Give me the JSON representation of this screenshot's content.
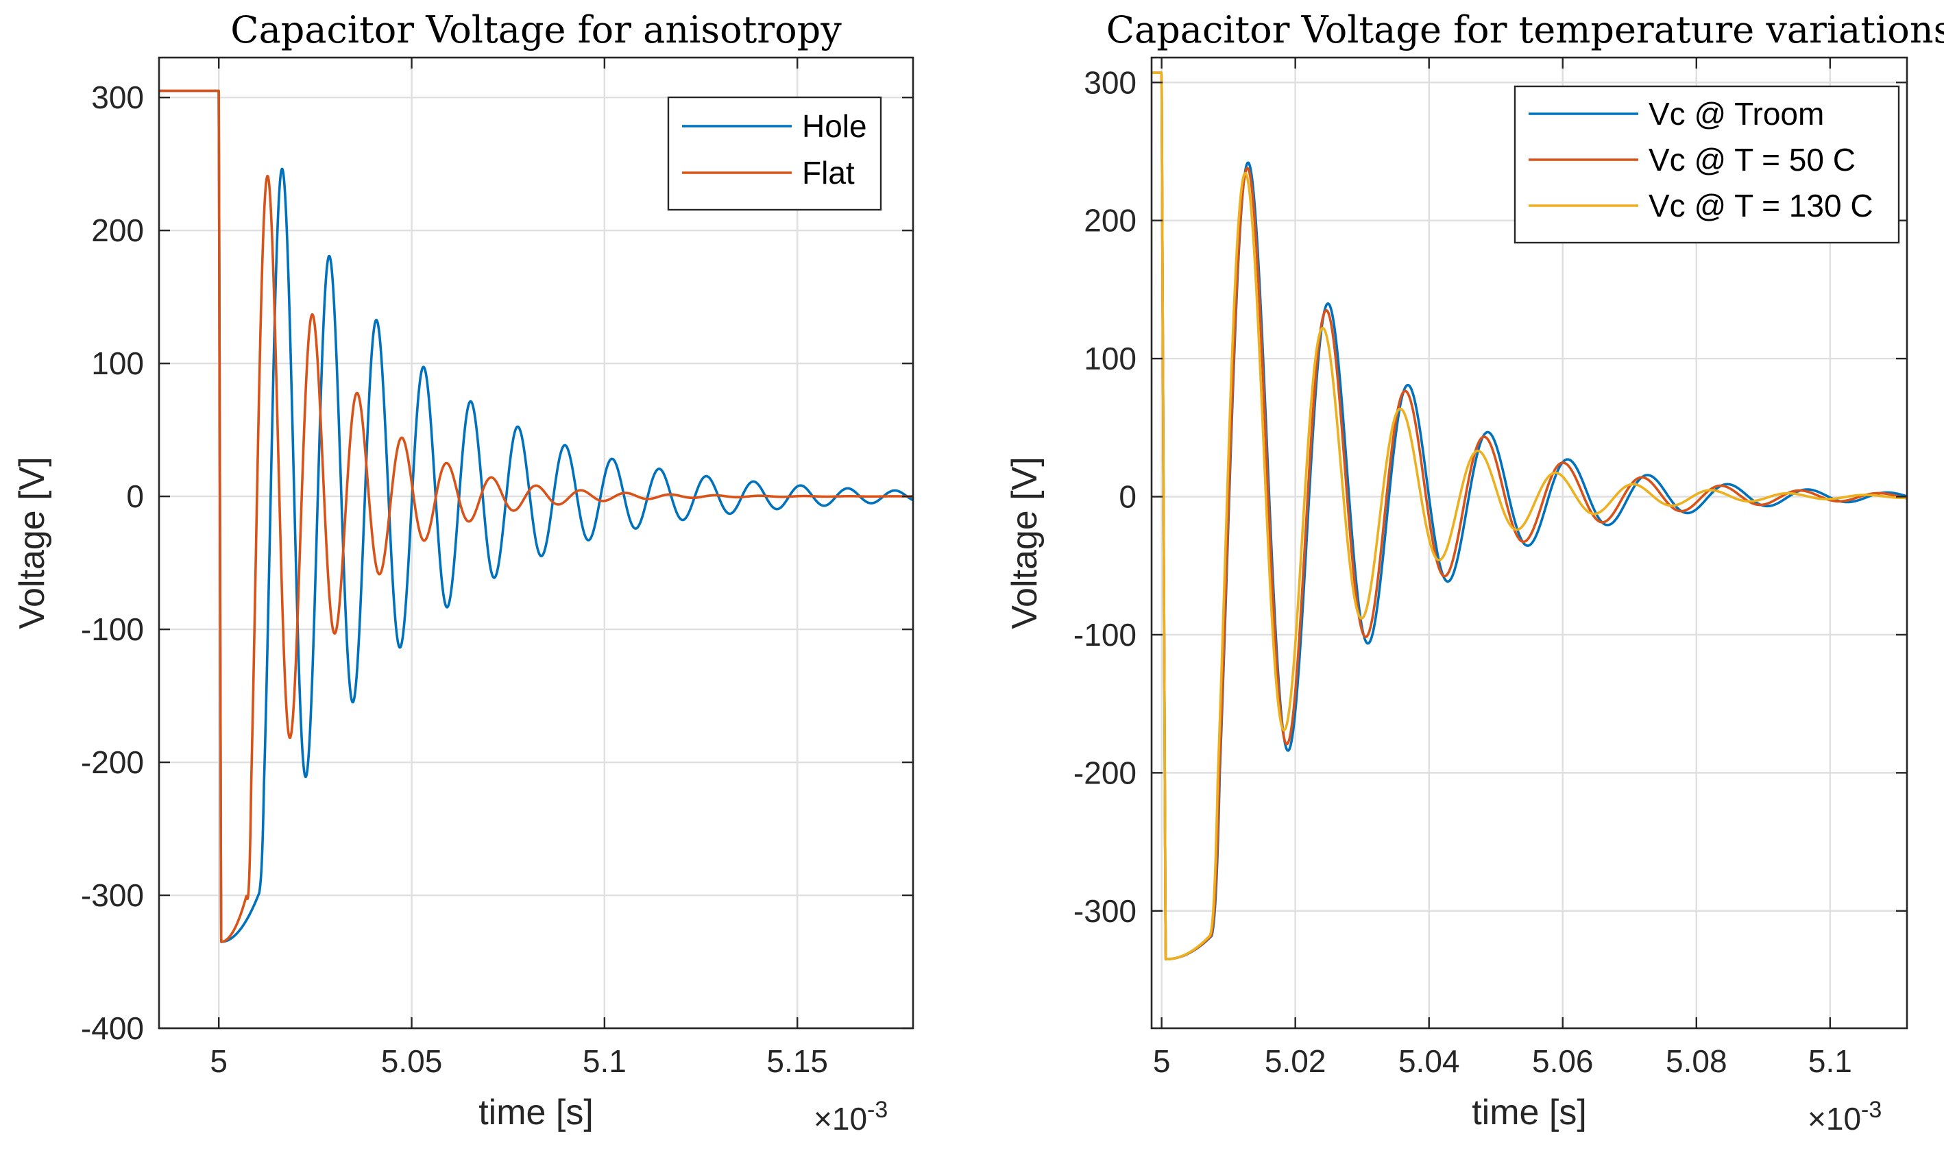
{
  "chart_data": [
    {
      "type": "line",
      "title": "Capacitor Voltage for anisotropy",
      "xlabel": "time [s]",
      "ylabel": "Voltage [V]",
      "x_exponent": "×10",
      "x_exponent_power": "-3",
      "xlim": [
        4.9845,
        5.18
      ],
      "ylim": [
        -400,
        330
      ],
      "xticks": [
        5,
        5.05,
        5.1,
        5.15
      ],
      "xtick_labels": [
        "5",
        "5.05",
        "5.1",
        "5.15"
      ],
      "yticks": [
        -400,
        -300,
        -200,
        -100,
        0,
        100,
        200,
        300
      ],
      "ytick_labels": [
        "-400",
        "-300",
        "-200",
        "-100",
        "0",
        "100",
        "200",
        "300"
      ],
      "grid": true,
      "legend_position": "top-right",
      "colors": {
        "Hole": "#0072BD",
        "Flat": "#D95319"
      },
      "series": [
        {
          "name": "Hole",
          "color": "#0072BD",
          "model": {
            "pre_level": 305,
            "switch_t": 5.0,
            "trough": -335,
            "ramp_end_t": 5.0105,
            "ramp_end_v": -298,
            "period": 0.01222,
            "first_peak_t": 5.0165,
            "peak_amplitude": 246,
            "decay_tau": 0.0395
          }
        },
        {
          "name": "Flat",
          "color": "#D95319",
          "model": {
            "pre_level": 305,
            "switch_t": 5.0,
            "trough": -335,
            "ramp_end_t": 5.0072,
            "ramp_end_v": -300,
            "period": 0.0116,
            "first_peak_t": 5.0128,
            "peak_amplitude": 240,
            "decay_tau": 0.0205
          }
        }
      ]
    },
    {
      "type": "line",
      "title": "Capacitor Voltage for temperature variations",
      "xlabel": "time [s]",
      "ylabel": "Voltage [V]",
      "x_exponent": "×10",
      "x_exponent_power": "-3",
      "xlim": [
        4.9985,
        5.1115
      ],
      "ylim": [
        -385,
        318
      ],
      "xticks": [
        5,
        5.02,
        5.04,
        5.06,
        5.08,
        5.1
      ],
      "xtick_labels": [
        "5",
        "5.02",
        "5.04",
        "5.06",
        "5.08",
        "5.1"
      ],
      "yticks": [
        -300,
        -200,
        -100,
        0,
        100,
        200,
        300
      ],
      "ytick_labels": [
        "-300",
        "-200",
        "-100",
        "0",
        "100",
        "200",
        "300"
      ],
      "grid": true,
      "legend_position": "top-right",
      "colors": {
        "Vc @ Troom": "#0072BD",
        "Vc @ T = 50 C": "#D95319",
        "Vc @ T = 130 C": "#EDB120"
      },
      "series": [
        {
          "name": "Vc @ Troom",
          "color": "#0072BD",
          "model": {
            "pre_level": 307,
            "switch_t": 5.0,
            "trough": -335,
            "ramp_end_t": 5.0075,
            "ramp_end_v": -318,
            "period": 0.01195,
            "first_peak_t": 5.0131,
            "peak_amplitude": 241,
            "decay_tau": 0.0218
          }
        },
        {
          "name": "Vc @ T = 50 C",
          "color": "#D95319",
          "model": {
            "pre_level": 307,
            "switch_t": 5.0,
            "trough": -335,
            "ramp_end_t": 5.0074,
            "ramp_end_v": -318,
            "period": 0.0118,
            "first_peak_t": 5.013,
            "peak_amplitude": 237,
            "decay_tau": 0.0208
          }
        },
        {
          "name": "Vc @ T = 130 C",
          "color": "#EDB120",
          "model": {
            "pre_level": 307,
            "switch_t": 5.0,
            "trough": -335,
            "ramp_end_t": 5.0072,
            "ramp_end_v": -318,
            "period": 0.0116,
            "first_peak_t": 5.0127,
            "peak_amplitude": 233,
            "decay_tau": 0.0178
          }
        }
      ]
    }
  ]
}
